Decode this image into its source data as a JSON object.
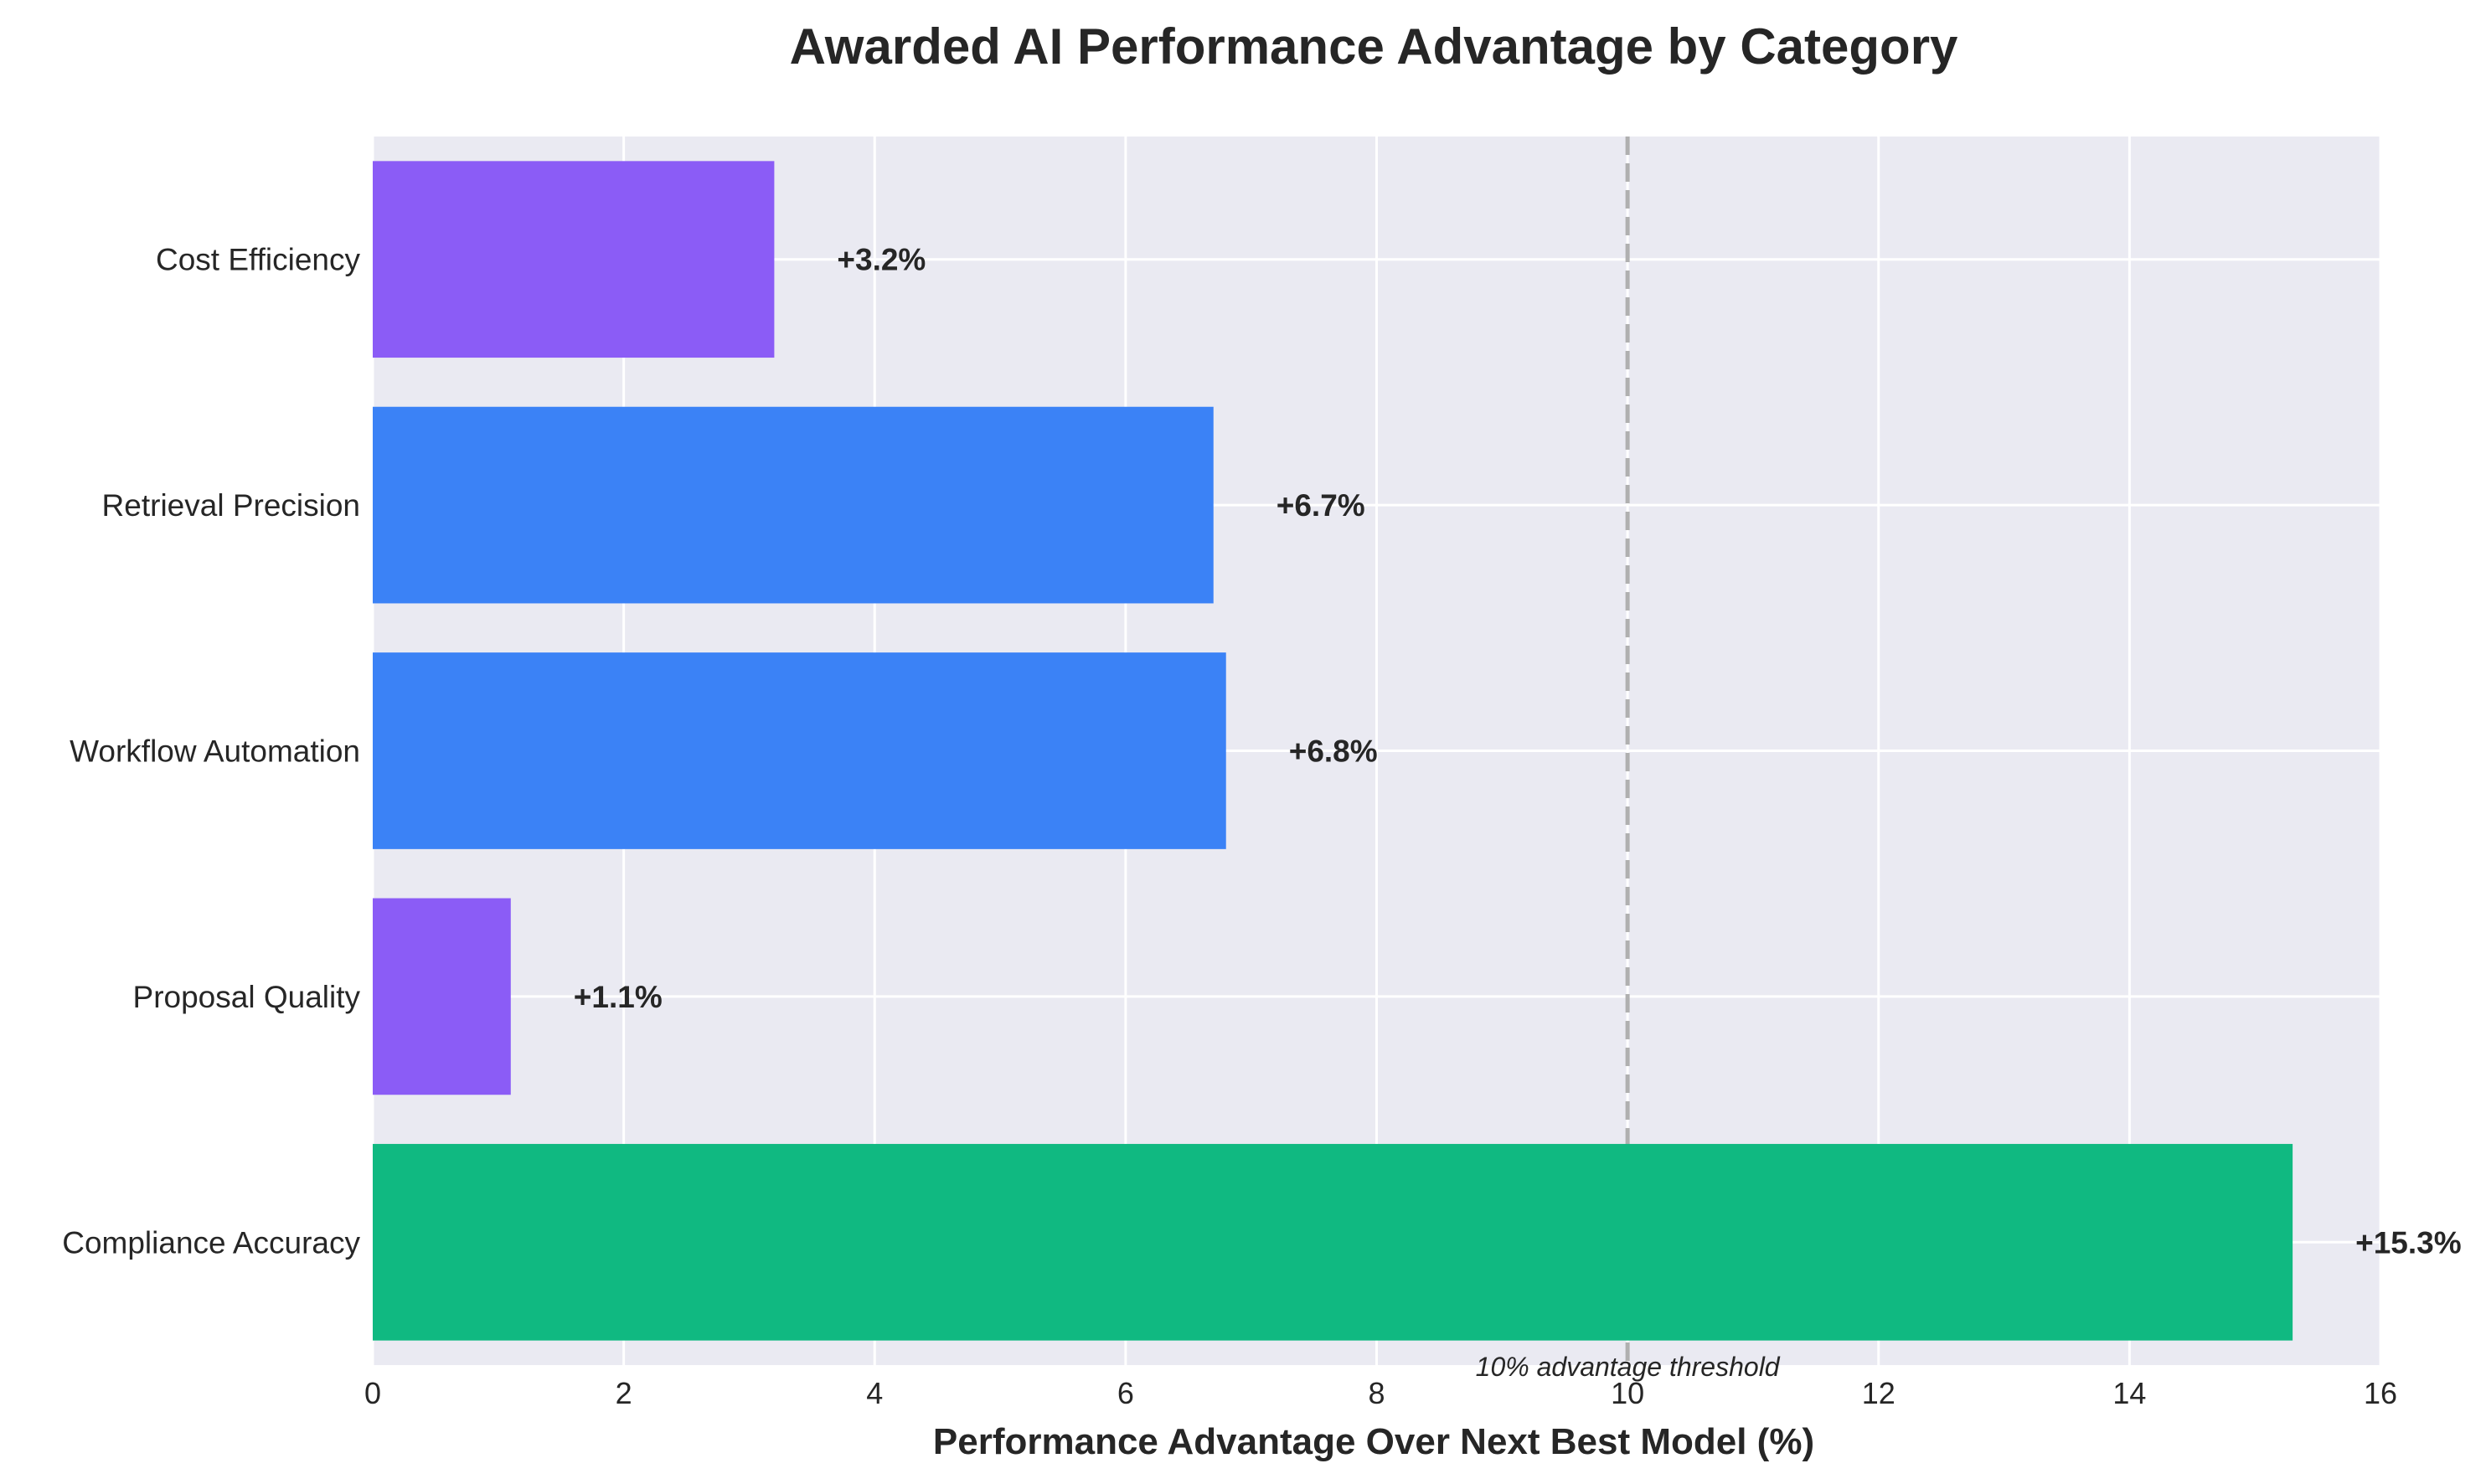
{
  "chart_data": {
    "type": "bar",
    "orientation": "horizontal",
    "title": "Awarded AI Performance Advantage by Category",
    "xlabel": "Performance Advantage Over Next Best Model (%)",
    "ylabel": "",
    "xlim": [
      0,
      16
    ],
    "xticks": [
      "0",
      "2",
      "4",
      "6",
      "8",
      "10",
      "12",
      "14",
      "16"
    ],
    "xtick_values": [
      0,
      2,
      4,
      6,
      8,
      10,
      12,
      14,
      16
    ],
    "categories": [
      "Compliance Accuracy",
      "Proposal Quality",
      "Workflow Automation",
      "Retrieval Precision",
      "Cost Efficiency"
    ],
    "values": [
      15.3,
      1.1,
      6.8,
      6.7,
      3.2
    ],
    "value_labels": [
      "+15.3%",
      "+1.1%",
      "+6.8%",
      "+6.7%",
      "+3.2%"
    ],
    "bar_colors": [
      "#10b981",
      "#8b5cf6",
      "#3b82f6",
      "#3b82f6",
      "#8b5cf6"
    ],
    "threshold": {
      "value": 10,
      "label": "10% advantage threshold",
      "color": "#b0b0b0"
    },
    "grid": true,
    "background_color": "#eaeaf2",
    "grid_color": "#ffffff"
  }
}
